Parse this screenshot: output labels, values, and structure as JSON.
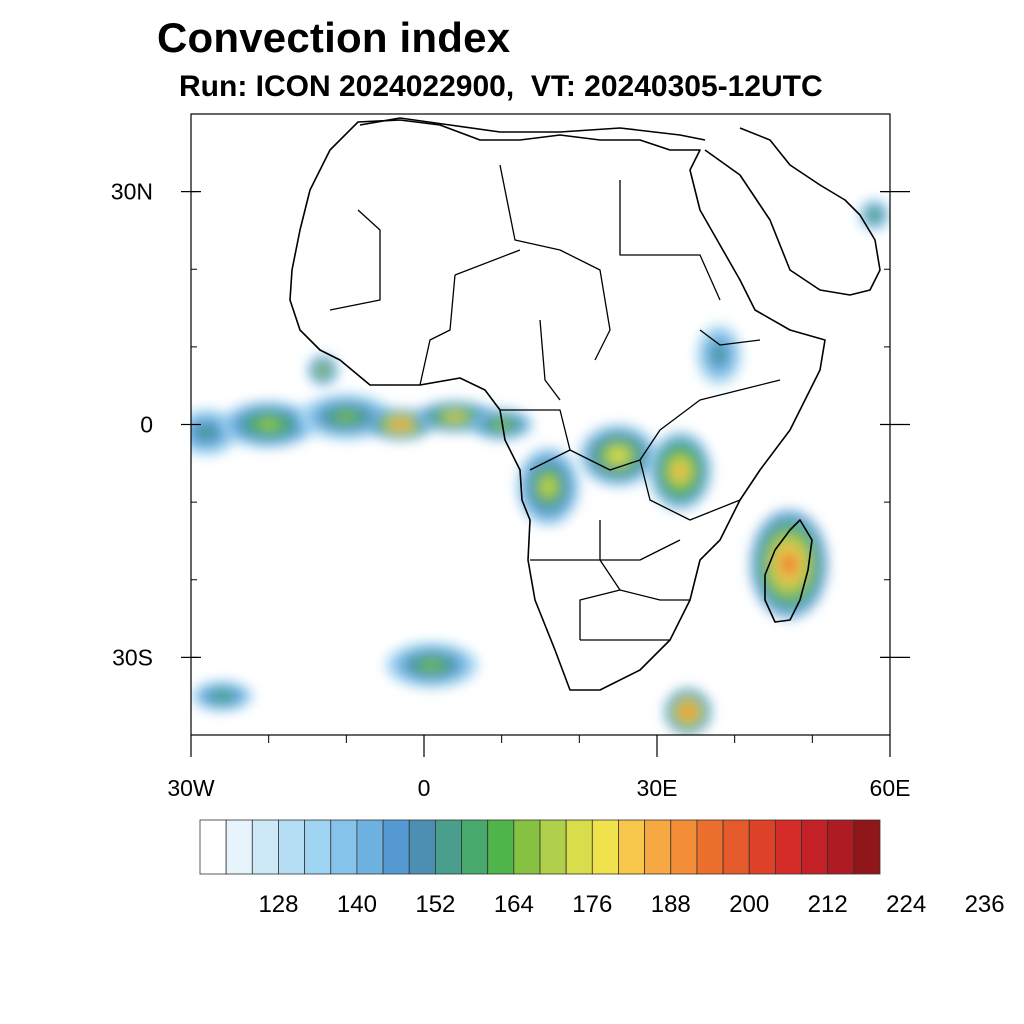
{
  "title": "Convection index",
  "subtitle": "Run: ICON 2024022900,  VT: 20240305-12UTC",
  "map": {
    "projection": "cylindrical-equidistant",
    "lon_range": [
      -30,
      60
    ],
    "lat_range": [
      -40,
      40
    ],
    "lat_ticks": [
      {
        "label": "30N",
        "lat": 30
      },
      {
        "label": "0",
        "lat": 0
      },
      {
        "label": "30S",
        "lat": -30
      }
    ],
    "lon_ticks": [
      {
        "label": "30W",
        "lon": -30
      },
      {
        "label": "0",
        "lon": 0
      },
      {
        "label": "30E",
        "lon": 30
      },
      {
        "label": "60E",
        "lon": 60
      }
    ],
    "coastline_color": "#000000"
  },
  "colorbar": {
    "colors": [
      "#ffffff",
      "#e7f4fb",
      "#cde9f7",
      "#b5def5",
      "#9fd5f3",
      "#86c3ea",
      "#6eb2e1",
      "#5599d2",
      "#4c8fb3",
      "#4a9e8c",
      "#48a96d",
      "#4fb54a",
      "#87c141",
      "#b0cf4a",
      "#d8dd4c",
      "#efe24d",
      "#f7c64b",
      "#f6a942",
      "#f38d38",
      "#ed6f2e",
      "#e45a2a",
      "#dd4128",
      "#d52c2a",
      "#c42027",
      "#ae1b22",
      "#8f1719"
    ],
    "labels": [
      "128",
      "140",
      "152",
      "164",
      "176",
      "188",
      "200",
      "212",
      "224",
      "236"
    ]
  },
  "convection_cells": [
    {
      "lon": -28,
      "lat": -1,
      "rx": 4,
      "ry": 3,
      "level": 10
    },
    {
      "lon": -20,
      "lat": 0,
      "rx": 6,
      "ry": 3,
      "level": 13
    },
    {
      "lon": -10,
      "lat": 1,
      "rx": 6,
      "ry": 3,
      "level": 12
    },
    {
      "lon": -3,
      "lat": 0,
      "rx": 4,
      "ry": 2,
      "level": 19
    },
    {
      "lon": 4,
      "lat": 1,
      "rx": 5,
      "ry": 2,
      "level": 16
    },
    {
      "lon": 10,
      "lat": 0,
      "rx": 4,
      "ry": 2,
      "level": 13
    },
    {
      "lon": 16,
      "lat": -8,
      "rx": 4,
      "ry": 5,
      "level": 14
    },
    {
      "lon": 25,
      "lat": -4,
      "rx": 5,
      "ry": 4,
      "level": 15
    },
    {
      "lon": 33,
      "lat": -6,
      "rx": 4,
      "ry": 5,
      "level": 17
    },
    {
      "lon": 47,
      "lat": -18,
      "rx": 5,
      "ry": 7,
      "level": 19
    },
    {
      "lon": 1,
      "lat": -31,
      "rx": 6,
      "ry": 3,
      "level": 12
    },
    {
      "lon": 34,
      "lat": -37,
      "rx": 3,
      "ry": 3,
      "level": 20
    },
    {
      "lon": -26,
      "lat": -35,
      "rx": 4,
      "ry": 2,
      "level": 11
    },
    {
      "lon": 38,
      "lat": 9,
      "rx": 3,
      "ry": 4,
      "level": 9
    },
    {
      "lon": -13,
      "lat": 7,
      "rx": 2,
      "ry": 2,
      "level": 14
    },
    {
      "lon": 58,
      "lat": 27,
      "rx": 2,
      "ry": 2,
      "level": 12
    }
  ]
}
